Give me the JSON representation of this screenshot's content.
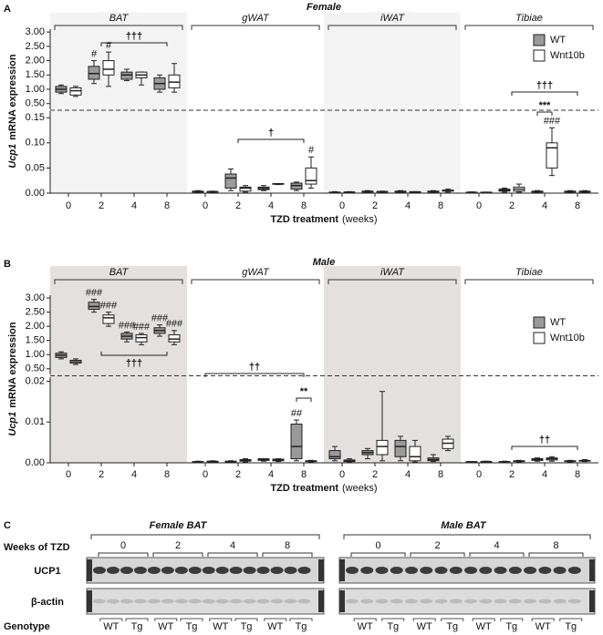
{
  "chart_data": [
    {
      "type": "box",
      "panel": "A",
      "title": "Female",
      "ylabel_gene": "Ucp1",
      "ylabel": "mRNA expression",
      "xlabel": "TZD treatment",
      "xlabel_unit": "(weeks)",
      "groups": [
        "BAT",
        "gWAT",
        "iWAT",
        "Tibiae"
      ],
      "categories": [
        "0",
        "2",
        "4",
        "8"
      ],
      "upper": {
        "ylim": [
          0.3,
          3.1
        ],
        "yticks": [
          {
            "value": 0.5,
            "label": "0.50"
          },
          {
            "value": 1,
            "label": "1.00"
          },
          {
            "value": 1.5,
            "label": "1.50"
          },
          {
            "value": 2,
            "label": "2.00"
          },
          {
            "value": 2.5,
            "label": "2.50"
          },
          {
            "value": 3,
            "label": "3.00"
          }
        ]
      },
      "lower": {
        "ylim": [
          0,
          0.163
        ],
        "yticks": [
          {
            "value": 0,
            "label": "0.00"
          },
          {
            "value": 0.05,
            "label": "0.05"
          },
          {
            "value": 0.1,
            "label": "0.10"
          },
          {
            "value": 0.15,
            "label": "0.15"
          }
        ]
      },
      "brackets": [
        "†††",
        "†",
        "†††",
        "***"
      ],
      "series": [
        {
          "name": "WT",
          "color": "#9a9a9a",
          "boxes": [
            [
              0.85,
              0.9,
              1.0,
              1.1,
              1.15
            ],
            [
              1.2,
              1.35,
              1.55,
              1.8,
              2.0
            ],
            [
              1.3,
              1.35,
              1.5,
              1.6,
              1.7
            ],
            [
              0.9,
              1.0,
              1.2,
              1.4,
              1.5
            ],
            [
              0.001,
              0.002,
              0.003,
              0.004,
              0.005
            ],
            [
              0.005,
              0.01,
              0.03,
              0.038,
              0.048
            ],
            [
              0.005,
              0.007,
              0.009,
              0.012,
              0.015
            ],
            [
              0.005,
              0.008,
              0.015,
              0.02,
              0.022
            ],
            [
              0.0005,
              0.001,
              0.0015,
              0.002,
              0.003
            ],
            [
              0.001,
              0.002,
              0.003,
              0.004,
              0.005
            ],
            [
              0.001,
              0.002,
              0.003,
              0.004,
              0.005
            ],
            [
              0.001,
              0.002,
              0.003,
              0.004,
              0.005
            ],
            [
              0.0005,
              0.001,
              0.0015,
              0.002,
              0.0025
            ],
            [
              0.002,
              0.004,
              0.006,
              0.008,
              0.01
            ],
            [
              0.001,
              0.002,
              0.003,
              0.004,
              0.005
            ],
            [
              0.001,
              0.002,
              0.003,
              0.004,
              0.005
            ]
          ],
          "box_labels": [
            null,
            "#",
            null,
            null,
            null,
            null,
            null,
            null,
            null,
            null,
            null,
            null,
            null,
            null,
            null,
            null
          ]
        },
        {
          "name": "Wnt10b",
          "color": "#ffffff",
          "boxes": [
            [
              0.75,
              0.8,
              0.95,
              1.05,
              1.1
            ],
            [
              1.1,
              1.5,
              1.7,
              2.0,
              2.3
            ],
            [
              1.15,
              1.4,
              1.5,
              1.6,
              1.6
            ],
            [
              0.9,
              1.05,
              1.25,
              1.5,
              1.9
            ],
            [
              0.001,
              0.002,
              0.003,
              0.003,
              0.004
            ],
            [
              0.002,
              0.004,
              0.01,
              0.012,
              0.015
            ],
            [
              0.017,
              0.018,
              0.018,
              0.019,
              0.019
            ],
            [
              0.01,
              0.018,
              0.025,
              0.05,
              0.072
            ],
            [
              0.0005,
              0.001,
              0.002,
              0.002,
              0.003
            ],
            [
              0.001,
              0.002,
              0.003,
              0.003,
              0.004
            ],
            [
              0.001,
              0.002,
              0.002,
              0.003,
              0.003
            ],
            [
              0.002,
              0.004,
              0.005,
              0.006,
              0.008
            ],
            [
              0.0005,
              0.001,
              0.001,
              0.002,
              0.002
            ],
            [
              0.002,
              0.004,
              0.008,
              0.012,
              0.018
            ],
            [
              0.035,
              0.05,
              0.09,
              0.1,
              0.13
            ],
            [
              0.001,
              0.002,
              0.003,
              0.004,
              0.005
            ]
          ],
          "box_labels": [
            null,
            "#",
            null,
            null,
            null,
            null,
            null,
            "#",
            null,
            null,
            null,
            null,
            null,
            null,
            "###",
            null
          ]
        }
      ]
    },
    {
      "type": "box",
      "panel": "B",
      "title": "Male",
      "ylabel_gene": "Ucp1",
      "ylabel": "mRNA expression",
      "xlabel": "TZD treatment",
      "xlabel_unit": "(weeks)",
      "groups": [
        "BAT",
        "gWAT",
        "iWAT",
        "Tibiae"
      ],
      "categories": [
        "0",
        "2",
        "4",
        "8"
      ],
      "upper": {
        "ylim": [
          0.3,
          3.1
        ],
        "yticks": [
          {
            "value": 0.5,
            "label": "0.50"
          },
          {
            "value": 1,
            "label": "1.00"
          },
          {
            "value": 1.5,
            "label": "1.50"
          },
          {
            "value": 2,
            "label": "2.00"
          },
          {
            "value": 2.5,
            "label": "2.50"
          },
          {
            "value": 3,
            "label": "3.00"
          }
        ]
      },
      "lower": {
        "ylim": [
          0,
          0.021
        ],
        "yticks": [
          {
            "value": 0,
            "label": "0.00"
          },
          {
            "value": 0.01,
            "label": "0.01"
          },
          {
            "value": 0.02,
            "label": "0.02"
          }
        ]
      },
      "brackets": [
        "†††",
        "††",
        "**",
        "††"
      ],
      "series": [
        {
          "name": "WT",
          "color": "#9a9a9a",
          "boxes": [
            [
              0.85,
              0.9,
              0.98,
              1.05,
              1.1
            ],
            [
              2.5,
              2.6,
              2.7,
              2.85,
              2.95
            ],
            [
              1.45,
              1.55,
              1.65,
              1.75,
              1.8
            ],
            [
              1.65,
              1.75,
              1.85,
              1.95,
              2.05
            ],
            [
              0.0001,
              0.0001,
              0.0002,
              0.0003,
              0.0004
            ],
            [
              0.0001,
              0.0002,
              0.0003,
              0.0004,
              0.0005
            ],
            [
              0.0004,
              0.0006,
              0.0008,
              0.001,
              0.001
            ],
            [
              0.0005,
              0.001,
              0.004,
              0.0095,
              0.0105
            ],
            [
              0.0005,
              0.001,
              0.0015,
              0.003,
              0.004
            ],
            [
              0.001,
              0.002,
              0.0025,
              0.003,
              0.0035
            ],
            [
              0.0005,
              0.0015,
              0.004,
              0.0055,
              0.0065
            ],
            [
              0.0003,
              0.0005,
              0.0008,
              0.0012,
              0.002
            ],
            [
              0.0001,
              0.0001,
              0.0002,
              0.0003,
              0.0003
            ],
            [
              0.0001,
              0.0001,
              0.0002,
              0.0003,
              0.0004
            ],
            [
              0.0004,
              0.0006,
              0.0008,
              0.001,
              0.0012
            ],
            [
              0.0002,
              0.0003,
              0.0004,
              0.0005,
              0.0006
            ]
          ],
          "box_labels": [
            null,
            "###",
            "###",
            "###",
            null,
            null,
            null,
            "##",
            null,
            null,
            null,
            null,
            null,
            null,
            null,
            null
          ]
        },
        {
          "name": "Wnt10b",
          "color": "#ffffff",
          "boxes": [
            [
              0.65,
              0.7,
              0.75,
              0.8,
              0.85
            ],
            [
              2.0,
              2.1,
              2.3,
              2.4,
              2.5
            ],
            [
              1.35,
              1.45,
              1.6,
              1.7,
              1.75
            ],
            [
              1.35,
              1.45,
              1.55,
              1.7,
              1.85
            ],
            [
              0.0001,
              0.0002,
              0.0003,
              0.0004,
              0.0005
            ],
            [
              0.0002,
              0.0004,
              0.0006,
              0.0008,
              0.001
            ],
            [
              0.0003,
              0.0005,
              0.0007,
              0.0009,
              0.001
            ],
            [
              0.0002,
              0.0003,
              0.0004,
              0.0005,
              0.0006
            ],
            [
              0.0002,
              0.0003,
              0.0005,
              0.0007,
              0.001
            ],
            [
              0.0005,
              0.002,
              0.004,
              0.0055,
              0.0175
            ],
            [
              0.0002,
              0.0005,
              0.0015,
              0.004,
              0.0055
            ],
            [
              0.003,
              0.0035,
              0.0048,
              0.0058,
              0.0065
            ],
            [
              0.0001,
              0.0002,
              0.0003,
              0.0003,
              0.0004
            ],
            [
              0.0002,
              0.0003,
              0.0004,
              0.0005,
              0.0006
            ],
            [
              0.0004,
              0.0007,
              0.001,
              0.0012,
              0.0015
            ],
            [
              0.0003,
              0.0004,
              0.0005,
              0.0006,
              0.0008
            ]
          ],
          "box_labels": [
            null,
            "###",
            "###",
            "###",
            null,
            null,
            null,
            null,
            null,
            null,
            null,
            null,
            null,
            null,
            null,
            null
          ]
        }
      ]
    }
  ],
  "blot": {
    "panel": "C",
    "groups": [
      "Female BAT",
      "Male BAT"
    ],
    "row_header": "Weeks of TZD",
    "weeks": [
      "0",
      "2",
      "4",
      "8"
    ],
    "bands": [
      "UCP1",
      "β-actin"
    ],
    "genotype_label": "Genotype",
    "genotypes": [
      "WT",
      "Tg"
    ]
  }
}
